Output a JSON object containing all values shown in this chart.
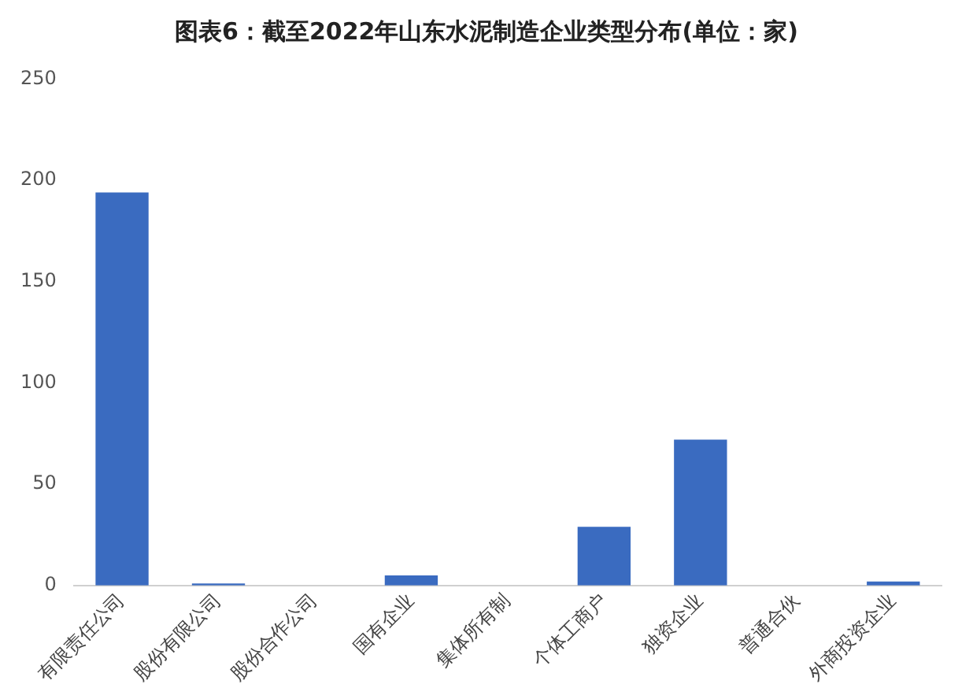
{
  "chart_data": {
    "type": "bar",
    "title": "图表6：截至2022年山东水泥制造企业类型分布(单位：家)",
    "categories": [
      "有限责任公司",
      "股份有限公司",
      "股份合作公司",
      "国有企业",
      "集体所有制",
      "个体工商户",
      "独资企业",
      "普通合伙",
      "外商投资企业"
    ],
    "values": [
      194,
      1,
      0,
      5,
      0,
      29,
      72,
      0,
      2
    ],
    "color": "#3a6bc0",
    "ylim": [
      0,
      250
    ],
    "yticks": [
      0,
      50,
      100,
      150,
      200,
      250
    ],
    "grid": false,
    "legend": false
  }
}
